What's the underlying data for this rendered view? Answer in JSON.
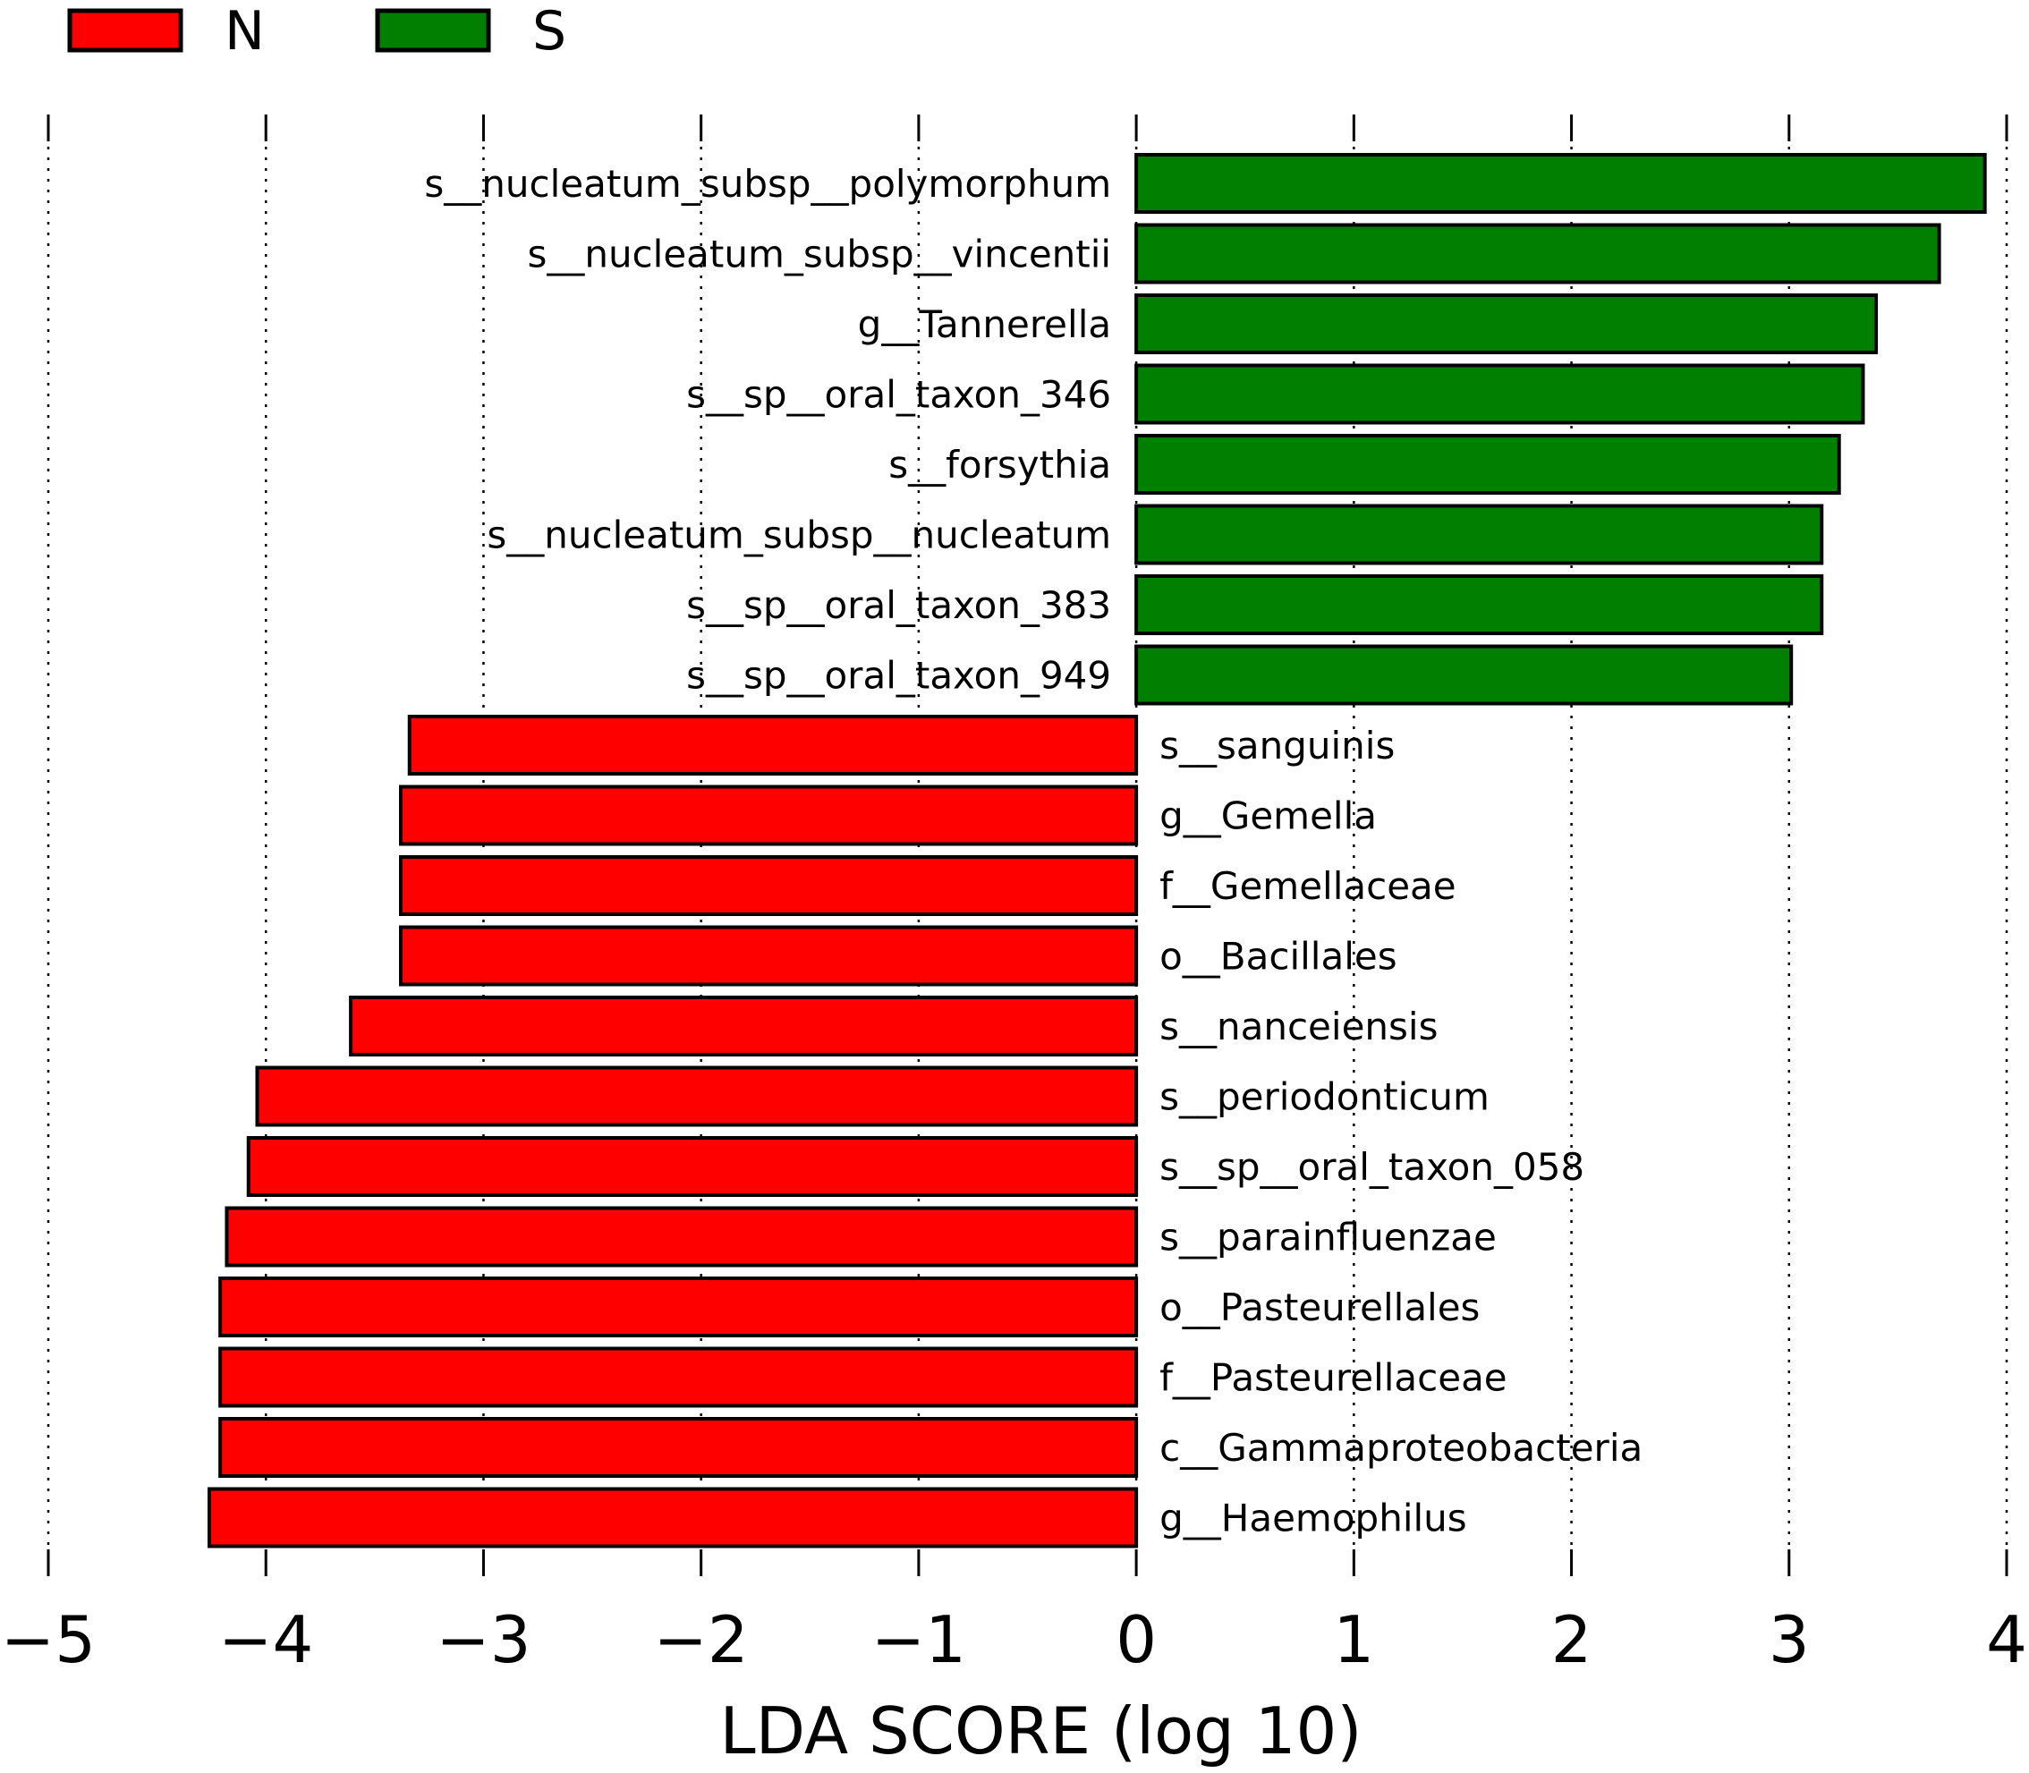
{
  "chart_data": {
    "type": "bar",
    "orientation": "horizontal",
    "xlabel": "LDA SCORE (log 10)",
    "xlim": [
      -5,
      4
    ],
    "xticks": [
      -5,
      -4,
      -3,
      -2,
      -1,
      0,
      1,
      2,
      3,
      4
    ],
    "xtick_labels": [
      "−5",
      "−4",
      "−3",
      "−2",
      "−1",
      "0",
      "1",
      "2",
      "3",
      "4"
    ],
    "grid": "vertical dotted",
    "legend": {
      "placement": "top-left",
      "entries": [
        {
          "name": "N",
          "color": "#ff0000"
        },
        {
          "name": "S",
          "color": "#007f00"
        }
      ]
    },
    "series": [
      {
        "name": "S",
        "color": "#007f00"
      },
      {
        "name": "N",
        "color": "#ff0000"
      }
    ],
    "bars": [
      {
        "label": "s__nucleatum_subsp__polymorphum",
        "value": 3.9,
        "group": "S"
      },
      {
        "label": "s__nucleatum_subsp__vincentii",
        "value": 3.69,
        "group": "S"
      },
      {
        "label": "g__Tannerella",
        "value": 3.4,
        "group": "S"
      },
      {
        "label": "s__sp__oral_taxon_346",
        "value": 3.34,
        "group": "S"
      },
      {
        "label": "s__forsythia",
        "value": 3.23,
        "group": "S"
      },
      {
        "label": "s__nucleatum_subsp__nucleatum",
        "value": 3.15,
        "group": "S"
      },
      {
        "label": "s__sp__oral_taxon_383",
        "value": 3.15,
        "group": "S"
      },
      {
        "label": "s__sp__oral_taxon_949",
        "value": 3.01,
        "group": "S"
      },
      {
        "label": "s__sanguinis",
        "value": -3.34,
        "group": "N"
      },
      {
        "label": "g__Gemella",
        "value": -3.38,
        "group": "N"
      },
      {
        "label": "f__Gemellaceae",
        "value": -3.38,
        "group": "N"
      },
      {
        "label": "o__Bacillales",
        "value": -3.38,
        "group": "N"
      },
      {
        "label": "s__nanceiensis",
        "value": -3.61,
        "group": "N"
      },
      {
        "label": "s__periodonticum",
        "value": -4.04,
        "group": "N"
      },
      {
        "label": "s__sp__oral_taxon_058",
        "value": -4.08,
        "group": "N"
      },
      {
        "label": "s__parainfluenzae",
        "value": -4.18,
        "group": "N"
      },
      {
        "label": "o__Pasteurellales",
        "value": -4.21,
        "group": "N"
      },
      {
        "label": "f__Pasteurellaceae",
        "value": -4.21,
        "group": "N"
      },
      {
        "label": "c__Gammaproteobacteria",
        "value": -4.21,
        "group": "N"
      },
      {
        "label": "g__Haemophilus",
        "value": -4.26,
        "group": "N"
      }
    ]
  }
}
